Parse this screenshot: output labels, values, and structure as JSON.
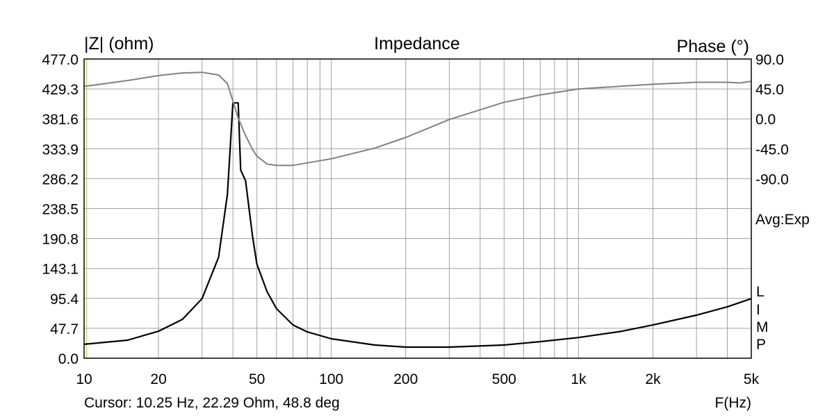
{
  "chart_data": {
    "type": "line",
    "title": "Impedance",
    "ylabel_left": "|Z| (ohm)",
    "ylabel_right": "Phase (°)",
    "xlabel": "F(Hz)",
    "x_scale": "log",
    "xlim": [
      10,
      5000
    ],
    "ylim_left": [
      0,
      477
    ],
    "ylim_right_top": 90,
    "phase_deg_per_left_division": 45,
    "grid": true,
    "x_ticks": [
      {
        "v": 10,
        "label": "10"
      },
      {
        "v": 20,
        "label": "20"
      },
      {
        "v": 50,
        "label": "50"
      },
      {
        "v": 100,
        "label": "100"
      },
      {
        "v": 200,
        "label": "200"
      },
      {
        "v": 500,
        "label": "500"
      },
      {
        "v": 1000,
        "label": "1k"
      },
      {
        "v": 2000,
        "label": "2k"
      },
      {
        "v": 5000,
        "label": "5k"
      }
    ],
    "y_ticks_left": [
      "0.0",
      "47.7",
      "95.4",
      "143.1",
      "190.8",
      "238.5",
      "286.2",
      "333.9",
      "381.6",
      "429.3",
      "477.0"
    ],
    "y_ticks_right": [
      {
        "v": 90,
        "label": "90.0"
      },
      {
        "v": 45,
        "label": "45.0"
      },
      {
        "v": 0,
        "label": "0.0"
      },
      {
        "v": -45,
        "label": "-45.0"
      },
      {
        "v": -90,
        "label": "-90.0"
      }
    ],
    "annotation_avg": "Avg:Exp",
    "annotation_limp": [
      "L",
      "I",
      "M",
      "P"
    ],
    "cursor_text": "Cursor: 10.25 Hz, 22.29 Ohm, 48.8 deg",
    "cursor_freq": 10.25,
    "series": [
      {
        "name": "|Z|",
        "axis": "left",
        "color": "#000000",
        "x": [
          10,
          15,
          20,
          25,
          30,
          35,
          38,
          40,
          42,
          43,
          45,
          48,
          50,
          55,
          60,
          70,
          80,
          100,
          150,
          200,
          300,
          500,
          700,
          1000,
          1500,
          2000,
          3000,
          4000,
          5000
        ],
        "y": [
          22.3,
          28.8,
          43,
          62,
          95,
          161,
          261,
          407,
          407,
          300,
          283,
          195,
          150,
          106,
          79,
          53,
          42,
          31,
          21,
          17.7,
          17.7,
          21,
          26.5,
          33,
          43,
          53,
          68.6,
          82,
          95
        ]
      },
      {
        "name": "Phase",
        "axis": "right",
        "color": "#808080",
        "x": [
          10,
          15,
          20,
          25,
          30,
          35,
          38,
          40,
          42,
          45,
          48,
          50,
          55,
          60,
          70,
          100,
          150,
          200,
          300,
          500,
          700,
          1000,
          2000,
          3000,
          4000,
          4500,
          5000
        ],
        "y": [
          48.8,
          57.6,
          65,
          69,
          70,
          66,
          53,
          27,
          1,
          -25,
          -46,
          -56,
          -68,
          -70,
          -70,
          -60,
          -44,
          -28,
          -1,
          25,
          36,
          45,
          52,
          55,
          55,
          54,
          56.5
        ]
      }
    ]
  }
}
